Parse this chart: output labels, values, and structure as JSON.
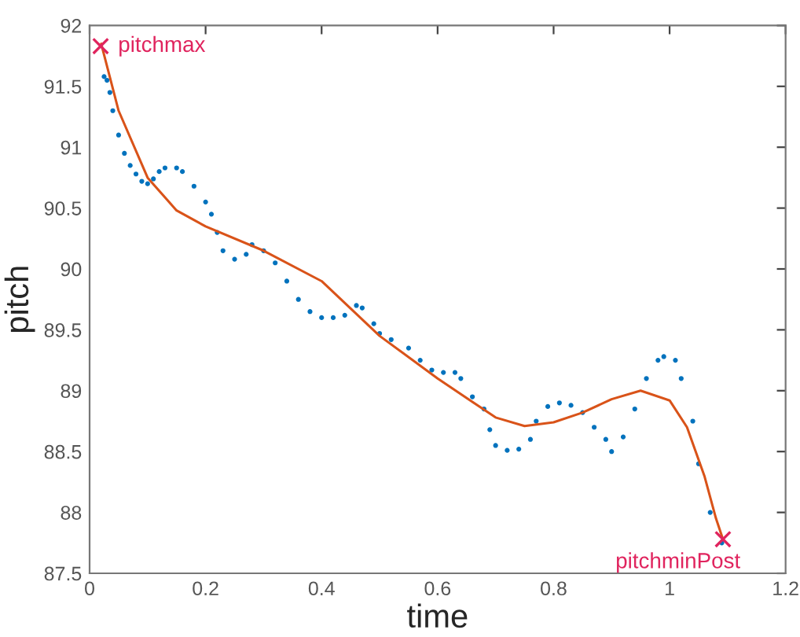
{
  "chart_data": {
    "type": "scatter",
    "xlabel": "time",
    "ylabel": "pitch",
    "xlim": [
      0,
      1.2
    ],
    "ylim": [
      87.5,
      92
    ],
    "xticks": [
      0,
      0.2,
      0.4,
      0.6,
      0.8,
      1,
      1.2
    ],
    "yticks": [
      87.5,
      88,
      88.5,
      89,
      89.5,
      90,
      90.5,
      91,
      91.5,
      92
    ],
    "grid": false,
    "legend": false,
    "series": [
      {
        "marker": "circle",
        "color": "#0072bd",
        "x": [
          0.025,
          0.03,
          0.035,
          0.04,
          0.05,
          0.06,
          0.07,
          0.08,
          0.09,
          0.1,
          0.11,
          0.12,
          0.13,
          0.15,
          0.16,
          0.18,
          0.2,
          0.21,
          0.22,
          0.23,
          0.25,
          0.27,
          0.28,
          0.3,
          0.32,
          0.34,
          0.36,
          0.38,
          0.4,
          0.42,
          0.44,
          0.46,
          0.47,
          0.49,
          0.5,
          0.52,
          0.55,
          0.57,
          0.59,
          0.61,
          0.63,
          0.64,
          0.66,
          0.68,
          0.69,
          0.7,
          0.72,
          0.74,
          0.76,
          0.77,
          0.79,
          0.81,
          0.83,
          0.85,
          0.87,
          0.89,
          0.9,
          0.92,
          0.94,
          0.96,
          0.98,
          0.99,
          1.01,
          1.02,
          1.04,
          1.05,
          1.07,
          1.09
        ],
        "values": [
          91.58,
          91.55,
          91.45,
          91.3,
          91.1,
          90.95,
          90.85,
          90.78,
          90.72,
          90.7,
          90.74,
          90.8,
          90.83,
          90.83,
          90.8,
          90.68,
          90.55,
          90.45,
          90.3,
          90.15,
          90.08,
          90.12,
          90.2,
          90.15,
          90.05,
          89.9,
          89.75,
          89.65,
          89.6,
          89.6,
          89.62,
          89.7,
          89.68,
          89.55,
          89.47,
          89.42,
          89.35,
          89.25,
          89.17,
          89.15,
          89.15,
          89.1,
          88.95,
          88.85,
          88.68,
          88.55,
          88.51,
          88.52,
          88.6,
          88.75,
          88.87,
          88.9,
          88.88,
          88.82,
          88.7,
          88.6,
          88.5,
          88.62,
          88.85,
          89.1,
          89.25,
          89.28,
          89.25,
          89.1,
          88.75,
          88.4,
          88.0,
          87.75
        ]
      },
      {
        "type": "line",
        "marker": "none",
        "line_style": "solid",
        "color": "#d95319",
        "x": [
          0.02,
          0.05,
          0.1,
          0.15,
          0.2,
          0.3,
          0.4,
          0.5,
          0.6,
          0.7,
          0.75,
          0.8,
          0.85,
          0.9,
          0.95,
          1.0,
          1.03,
          1.06,
          1.08,
          1.092
        ],
        "values": [
          91.85,
          91.3,
          90.75,
          90.48,
          90.35,
          90.15,
          89.9,
          89.45,
          89.1,
          88.78,
          88.71,
          88.74,
          88.82,
          88.93,
          89.0,
          88.92,
          88.7,
          88.3,
          87.95,
          87.78
        ]
      },
      {
        "marker": "cross",
        "name": "pitchmax",
        "color": "#e0245e",
        "x": [
          0.019
        ],
        "values": [
          91.83
        ]
      },
      {
        "marker": "cross",
        "name": "pitchminPost",
        "color": "#e0245e",
        "x": [
          1.092
        ],
        "values": [
          87.78
        ]
      }
    ]
  }
}
